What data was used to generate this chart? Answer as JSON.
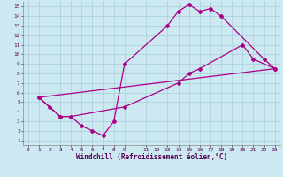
{
  "xlabel": "Windchill (Refroidissement éolien,°C)",
  "bg_color": "#cce8f0",
  "grid_color": "#aaccdd",
  "line_color": "#aa0088",
  "xlim": [
    -0.5,
    23.5
  ],
  "ylim": [
    0.5,
    15.5
  ],
  "xticks": [
    0,
    1,
    2,
    3,
    4,
    5,
    6,
    7,
    8,
    9,
    11,
    12,
    13,
    14,
    15,
    16,
    17,
    18,
    19,
    20,
    21,
    22,
    23
  ],
  "yticks": [
    1,
    2,
    3,
    4,
    5,
    6,
    7,
    8,
    9,
    10,
    11,
    12,
    13,
    14,
    15
  ],
  "line1_x": [
    1,
    2,
    3,
    4,
    5,
    6,
    7,
    8,
    9,
    13,
    14,
    14,
    15,
    16,
    17,
    18,
    22,
    23
  ],
  "line1_y": [
    5.5,
    4.5,
    3.5,
    3.5,
    2.5,
    2.0,
    1.5,
    3.0,
    9.0,
    13.0,
    14.5,
    14.5,
    15.2,
    14.5,
    14.8,
    14.0,
    9.5,
    8.5
  ],
  "line2_x": [
    1,
    3,
    4,
    9,
    14,
    15,
    16,
    20,
    21,
    23
  ],
  "line2_y": [
    5.5,
    3.5,
    3.5,
    4.5,
    7.0,
    8.0,
    8.5,
    11.0,
    9.5,
    8.5
  ],
  "line3_x": [
    1,
    23
  ],
  "line3_y": [
    5.5,
    8.5
  ],
  "marker": "D",
  "markersize": 2.0,
  "linewidth": 0.9,
  "tick_fontsize": 4.5,
  "xlabel_fontsize": 5.5
}
